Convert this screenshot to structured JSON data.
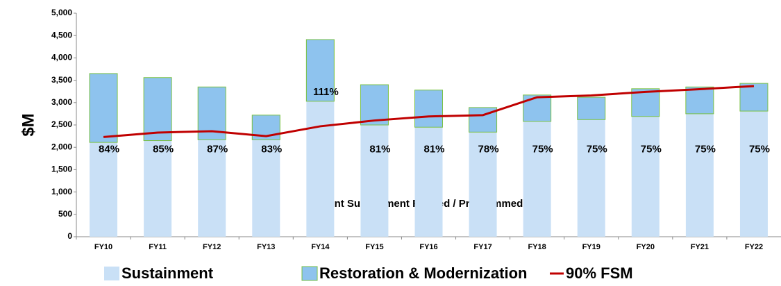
{
  "chart_data": {
    "type": "stacked_bar_line",
    "ylabel": "$M",
    "annotation": "Percent Sustainment Funded / Programmed",
    "categories": [
      "FY10",
      "FY11",
      "FY12",
      "FY13",
      "FY14",
      "FY15",
      "FY16",
      "FY17",
      "FY18",
      "FY19",
      "FY20",
      "FY21",
      "FY22"
    ],
    "series": [
      {
        "name": "Sustainment",
        "color": "#c9e0f6",
        "kind": "bar",
        "values": [
          2110,
          2150,
          2170,
          2170,
          3030,
          2500,
          2450,
          2340,
          2580,
          2620,
          2690,
          2750,
          2810
        ]
      },
      {
        "name": "Restoration & Modernization",
        "color": "#8ec3ee",
        "edge": "#7ac143",
        "kind": "bar",
        "values": [
          1540,
          1410,
          1180,
          550,
          1380,
          900,
          830,
          550,
          590,
          500,
          620,
          600,
          620
        ]
      },
      {
        "name": "90% FSM",
        "color": "#c00000",
        "kind": "line",
        "values": [
          2230,
          2330,
          2360,
          2250,
          2470,
          2600,
          2690,
          2720,
          3120,
          3160,
          3240,
          3300,
          3370
        ]
      }
    ],
    "percent_labels": [
      "84%",
      "85%",
      "87%",
      "83%",
      "111%",
      "81%",
      "81%",
      "78%",
      "75%",
      "75%",
      "75%",
      "75%",
      "75%"
    ],
    "ylim": [
      0,
      5000
    ],
    "yticks": [
      0,
      500,
      {
        "value": 1000,
        "label": "1,000"
      },
      {
        "value": 1500,
        "label": "1,500"
      },
      {
        "value": 2000,
        "label": "2,000"
      },
      {
        "value": 2500,
        "label": "2,500"
      },
      {
        "value": 3000,
        "label": "3,000"
      },
      {
        "value": 3500,
        "label": "3,500"
      },
      {
        "value": 4000,
        "label": "4,000"
      },
      {
        "value": 4500,
        "label": "4,500"
      },
      {
        "value": 5000,
        "label": "5,000"
      }
    ]
  }
}
